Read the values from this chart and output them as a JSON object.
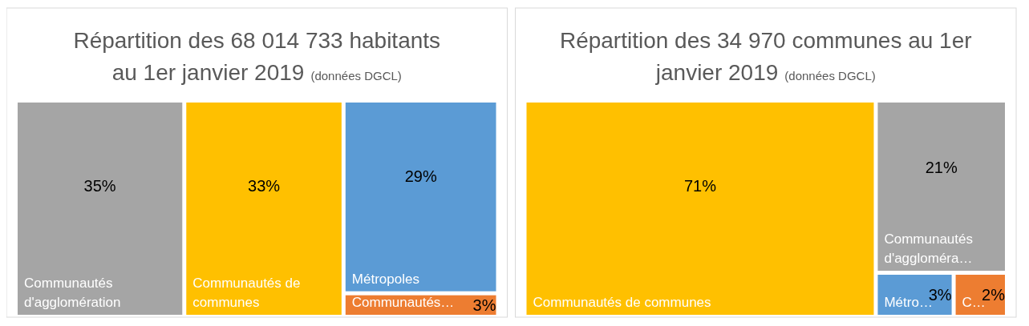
{
  "chart_data": [
    {
      "type": "other",
      "title": "Répartition des 68 014 733 habitants au 1er janvier 2019",
      "subtitle": "(données DGCL)",
      "categories": [
        "Communautés d'agglomération",
        "Communautés de communes",
        "Métropoles",
        "Communautés…"
      ],
      "values": [
        35,
        33,
        29,
        3
      ],
      "value_labels": [
        "35%",
        "33%",
        "29%",
        "3%"
      ],
      "colors": [
        "#a5a5a5",
        "#ffc000",
        "#5b9bd5",
        "#ed7d31"
      ]
    },
    {
      "type": "other",
      "title": "Répartition des 34 970 communes au 1er janvier 2019",
      "subtitle": "(données DGCL)",
      "categories": [
        "Communautés de communes",
        "Communautés d'aggloméra…",
        "Métro…",
        "C…"
      ],
      "values": [
        71,
        21,
        3,
        2
      ],
      "value_labels": [
        "71%",
        "21%",
        "3%",
        "2%"
      ],
      "colors": [
        "#ffc000",
        "#a5a5a5",
        "#5b9bd5",
        "#ed7d31"
      ]
    }
  ]
}
